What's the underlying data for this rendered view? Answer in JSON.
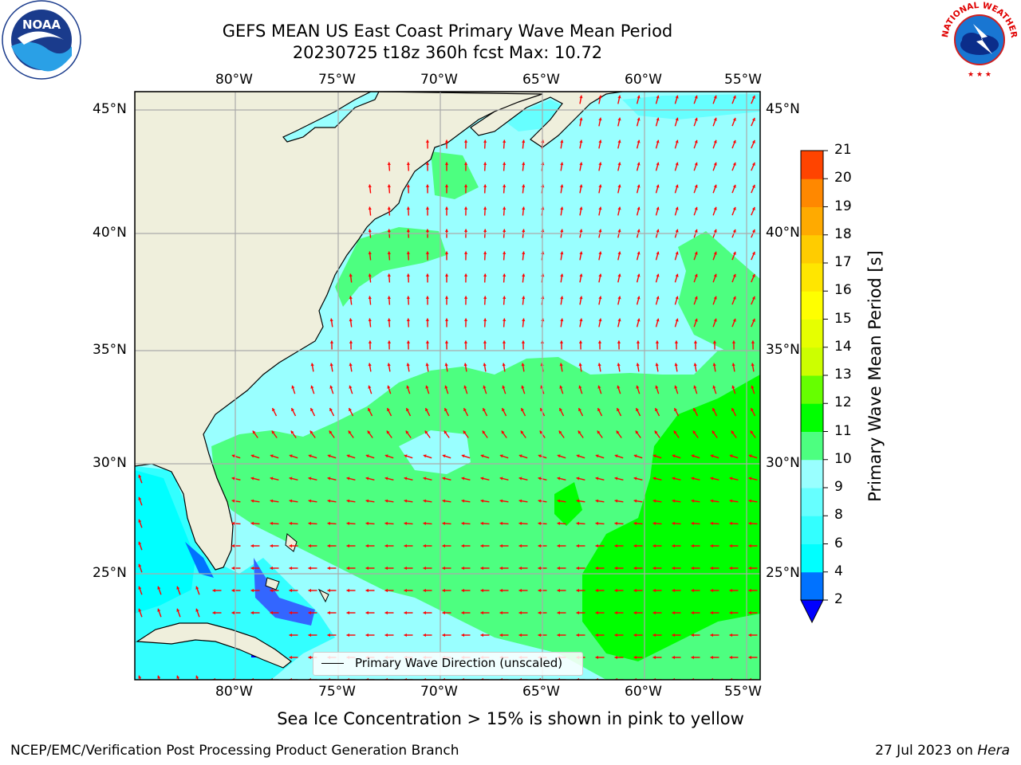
{
  "title_line1": "GEFS MEAN US East Coast Primary Wave Mean Period",
  "title_line2": "20230725 t18z 360h fcst   Max: 10.72",
  "subcaption": "Sea Ice Concentration > 15% is shown in pink to yellow",
  "footer_left": "NCEP/EMC/Verification Post Processing Product Generation Branch",
  "footer_date": "27 Jul 2023 on ",
  "footer_host": "Hera",
  "legend_label": "Primary Wave Direction (unscaled)",
  "colorbar": {
    "label": "Primary Wave Mean Period [s]",
    "ticks": [
      "2",
      "4",
      "6",
      "8",
      "9",
      "10",
      "11",
      "12",
      "13",
      "14",
      "15",
      "16",
      "17",
      "18",
      "19",
      "20",
      "21"
    ],
    "colors": [
      "#0072ff",
      "#00ffff",
      "#33ffff",
      "#66ffff",
      "#99ffff",
      "#4dff80",
      "#00ff00",
      "#66ff00",
      "#ccff00",
      "#e6ff00",
      "#ffff00",
      "#ffe600",
      "#ffcc00",
      "#ffaa00",
      "#ff8800",
      "#ff4400",
      "#ff0000"
    ],
    "extend_color": "#0000ff"
  },
  "map": {
    "lon_labels": [
      "80°W",
      "75°W",
      "70°W",
      "65°W",
      "60°W",
      "55°W"
    ],
    "lat_labels": [
      "45°N",
      "40°N",
      "35°N",
      "30°N",
      "25°N"
    ],
    "land_color": "#efefdc",
    "arrow_color": "#ff0000"
  },
  "logos": {
    "left": "NOAA",
    "right_text": "NATIONAL WEATHER SERVICE"
  },
  "chart_data": {
    "type": "heatmap",
    "field": "Primary Wave Mean Period",
    "units": "s",
    "max": 10.72,
    "lon_range": [
      -85,
      -54.5
    ],
    "lat_range": [
      20.5,
      46
    ],
    "levels": [
      2,
      4,
      6,
      8,
      9,
      10,
      11,
      12,
      13,
      14,
      15,
      16,
      17,
      18,
      19,
      20,
      21
    ]
  }
}
